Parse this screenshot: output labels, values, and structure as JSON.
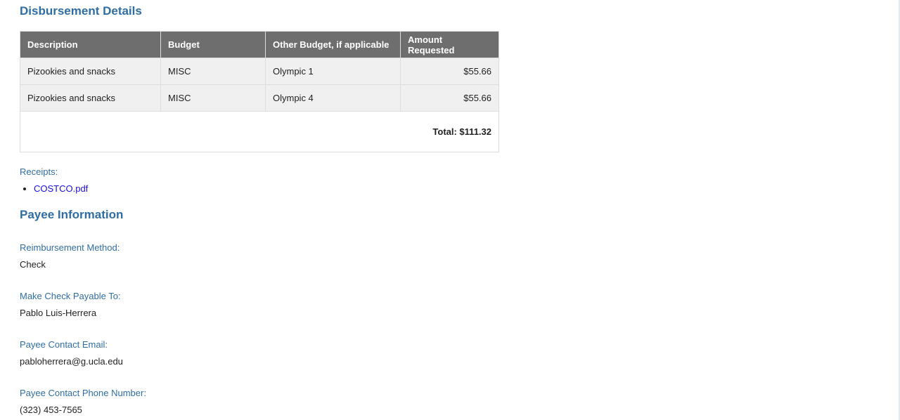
{
  "disbursement": {
    "title": "Disbursement Details",
    "columns": [
      "Description",
      "Budget",
      "Other Budget, if applicable",
      "Amount Requested"
    ],
    "rows": [
      [
        "Pizookies and snacks",
        "MISC",
        "Olympic 1",
        "$55.66"
      ],
      [
        "Pizookies and snacks",
        "MISC",
        "Olympic 4",
        "$55.66"
      ]
    ],
    "total": "Total: $111.32"
  },
  "receipts": {
    "label": "Receipts:",
    "files": [
      "COSTCO.pdf"
    ]
  },
  "payee": {
    "title": "Payee Information",
    "fields": [
      {
        "label": "Reimbursement Method:",
        "value": "Check"
      },
      {
        "label": "Make Check Payable To:",
        "value": "Pablo Luis-Herrera"
      },
      {
        "label": "Payee Contact Email:",
        "value": "pabloherrera@g.ucla.edu"
      },
      {
        "label": "Payee Contact Phone Number:",
        "value": "(323) 453-7565"
      }
    ]
  }
}
